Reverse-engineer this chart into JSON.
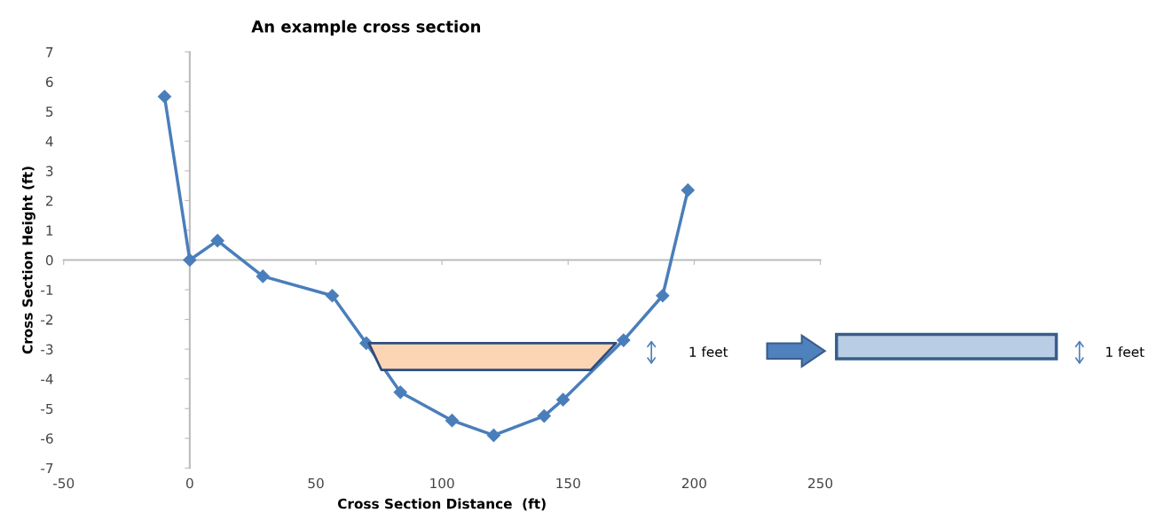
{
  "chart_data": {
    "type": "line",
    "title": "An example cross section",
    "xlabel": "Cross Section Distance  (ft)",
    "ylabel": "Cross Section Height (ft)",
    "series": [
      {
        "color": "#4a7ebb",
        "x": [
          -10,
          0,
          11,
          29,
          56.5,
          70,
          83.5,
          104,
          120.5,
          140.5,
          148,
          172,
          187.5,
          197.5
        ],
        "values": [
          5.5,
          0,
          0.65,
          -0.55,
          -1.2,
          -2.8,
          -4.45,
          -5.4,
          -5.9,
          -5.25,
          -4.7,
          -2.7,
          -1.2,
          2.35
        ]
      },
      {
        "type": "area",
        "color": "#fcd5b5",
        "marker": "none",
        "x": [
          71,
          169,
          159,
          76,
          71
        ],
        "values": [
          -2.8,
          -2.8,
          -3.7,
          -3.7,
          -2.8
        ]
      }
    ],
    "annotations": [
      "1 feet",
      "1 feet"
    ],
    "marker": "diamond",
    "line_style": "solid",
    "xlim": [
      -50,
      250
    ],
    "xticks": [
      -50,
      0,
      50,
      100,
      150,
      200,
      250
    ],
    "ylim": [
      -7,
      7
    ],
    "yticks": [
      -7,
      -6,
      -5,
      -4,
      -3,
      -2,
      -1,
      0,
      1,
      2,
      3,
      4,
      5,
      6,
      7
    ]
  }
}
